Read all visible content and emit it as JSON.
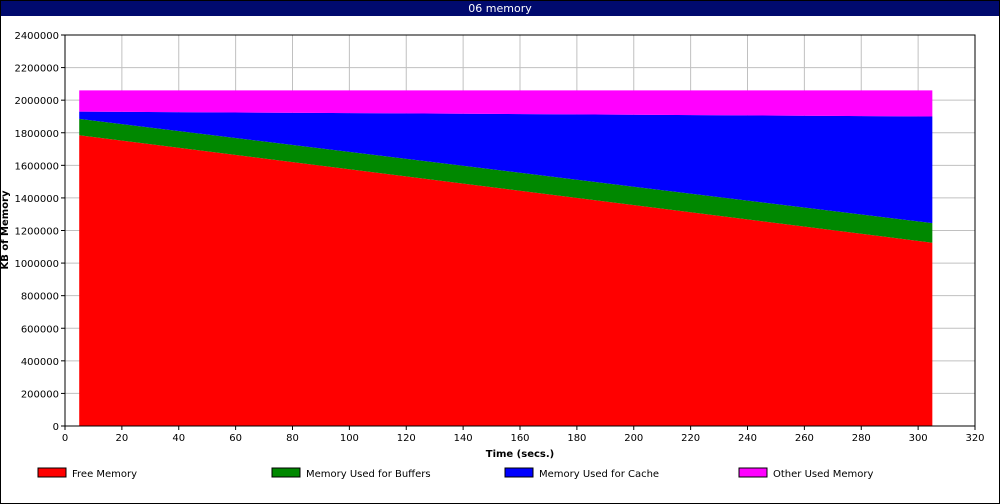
{
  "window": {
    "title": "06 memory"
  },
  "chart_data": {
    "type": "area",
    "stacked": true,
    "xlabel": "Time (secs.)",
    "ylabel": "KB of Memory",
    "xlim": [
      0,
      320
    ],
    "ylim": [
      0,
      2400000
    ],
    "x_ticks": [
      0,
      20,
      40,
      60,
      80,
      100,
      120,
      140,
      160,
      180,
      200,
      220,
      240,
      260,
      280,
      300,
      320
    ],
    "y_ticks": [
      0,
      200000,
      400000,
      600000,
      800000,
      1000000,
      1200000,
      1400000,
      1600000,
      1800000,
      2000000,
      2200000,
      2400000
    ],
    "grid": true,
    "legend_position": "bottom",
    "x": [
      5,
      305
    ],
    "series": [
      {
        "name": "Free Memory",
        "color": "#ff0000",
        "values": [
          1785000,
          1125000
        ]
      },
      {
        "name": "Memory Used for Buffers",
        "color": "#008800",
        "values": [
          100000,
          120000
        ]
      },
      {
        "name": "Memory Used for Cache",
        "color": "#0000ff",
        "values": [
          45000,
          655000
        ]
      },
      {
        "name": "Other Used Memory",
        "color": "#ff00ff",
        "values": [
          130000,
          160000
        ]
      }
    ]
  }
}
